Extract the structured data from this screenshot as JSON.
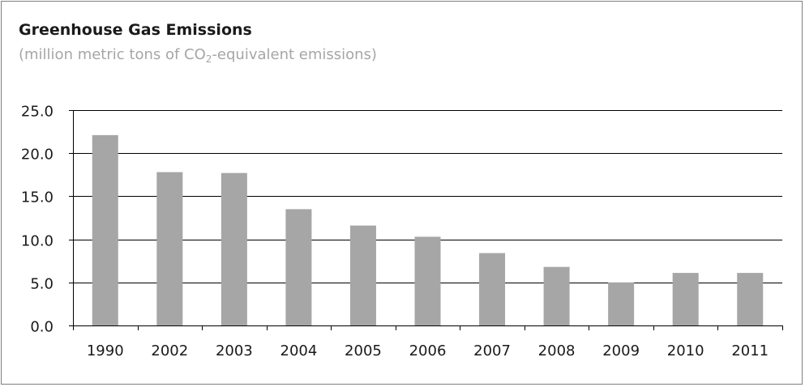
{
  "chart_data": {
    "type": "bar",
    "title": "Greenhouse Gas Emissions",
    "subtitle_before": "(million metric tons of CO",
    "subtitle_sub": "2",
    "subtitle_after": "-equivalent emissions)",
    "xlabel": "",
    "ylabel": "",
    "categories": [
      "1990",
      "2002",
      "2003",
      "2004",
      "2005",
      "2006",
      "2007",
      "2008",
      "2009",
      "2010",
      "2011"
    ],
    "values": [
      22.1,
      17.8,
      17.7,
      13.5,
      11.6,
      10.3,
      8.4,
      6.8,
      5.0,
      6.1,
      6.1
    ],
    "ylim": [
      0,
      25
    ],
    "yticks": [
      "0.0",
      "5.0",
      "10.0",
      "15.0",
      "20.0",
      "25.0"
    ],
    "grid": true,
    "legend": "none",
    "bar_color": "#a6a6a6",
    "grid_color": "#000000"
  }
}
